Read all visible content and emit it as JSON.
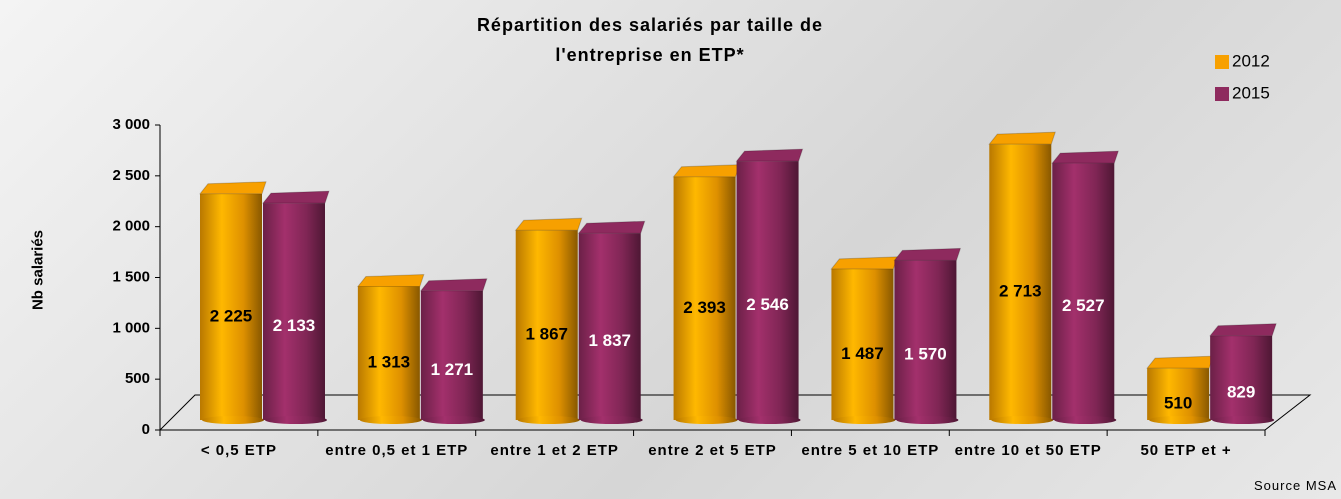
{
  "chart_data": {
    "type": "bar",
    "title": "Répartition des salariés par taille de l'entreprise en ETP*",
    "ylabel": "Nb salariés",
    "source": "Source MSA",
    "categories": [
      "< 0,5 ETP",
      "entre 0,5 et 1 ETP",
      "entre 1 et 2 ETP",
      "entre 2 et 5 ETP",
      "entre 5 et 10 ETP",
      "entre 10 et 50 ETP",
      "50 ETP et +"
    ],
    "series": [
      {
        "name": "2012",
        "color": "#f7a000",
        "values": [
          2225,
          1313,
          1867,
          2393,
          1487,
          2713,
          510
        ],
        "value_labels": [
          "2 225",
          "1 313",
          "1 867",
          "2 393",
          "1 487",
          "2 713",
          "510"
        ]
      },
      {
        "name": "2015",
        "color": "#8e2a5e",
        "values": [
          2133,
          1271,
          1837,
          2546,
          1570,
          2527,
          829
        ],
        "value_labels": [
          "2 133",
          "1 271",
          "1 837",
          "2 546",
          "1 570",
          "2 527",
          "829"
        ]
      }
    ],
    "ylim": [
      0,
      3000
    ],
    "yticks": [
      0,
      500,
      {
        "value": 1000,
        "label": "1 000"
      },
      {
        "value": 1500,
        "label": "1 500"
      },
      {
        "value": 2000,
        "label": "2 000"
      },
      {
        "value": 2500,
        "label": "2 500"
      },
      {
        "value": 3000,
        "label": "3 000"
      }
    ],
    "legend": "top-right"
  }
}
